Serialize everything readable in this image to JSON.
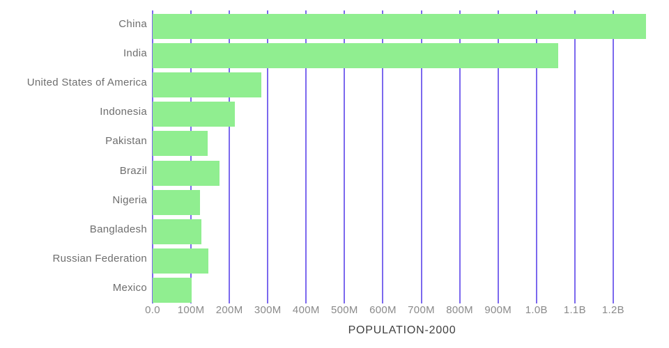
{
  "chart_data": {
    "type": "bar",
    "orientation": "horizontal",
    "title": "",
    "xlabel": "POPULATION-2000",
    "ylabel": "",
    "categories": [
      "China",
      "India",
      "United States of America",
      "Indonesia",
      "Pakistan",
      "Brazil",
      "Nigeria",
      "Bangladesh",
      "Russian Federation",
      "Mexico"
    ],
    "values_millions": [
      1285,
      1056,
      283,
      214,
      143,
      175,
      123,
      128,
      146,
      101
    ],
    "x_tick_labels": [
      "0.0",
      "100M",
      "200M",
      "300M",
      "400M",
      "500M",
      "600M",
      "700M",
      "800M",
      "900M",
      "1.0B",
      "1.1B",
      "1.2B"
    ],
    "x_tick_values_millions": [
      0,
      100,
      200,
      300,
      400,
      500,
      600,
      700,
      800,
      900,
      1000,
      1100,
      1200
    ],
    "xlim_millions": [
      0,
      1300
    ],
    "grid": "vertical",
    "legend": "none",
    "colors": {
      "bar_fill": "#90ee90",
      "gridline": "#7b68ee",
      "category_label": "#6e6e6e",
      "tick_label": "#8a8a8a",
      "axis_title": "#3f3f3f",
      "background": "#ffffff"
    }
  }
}
